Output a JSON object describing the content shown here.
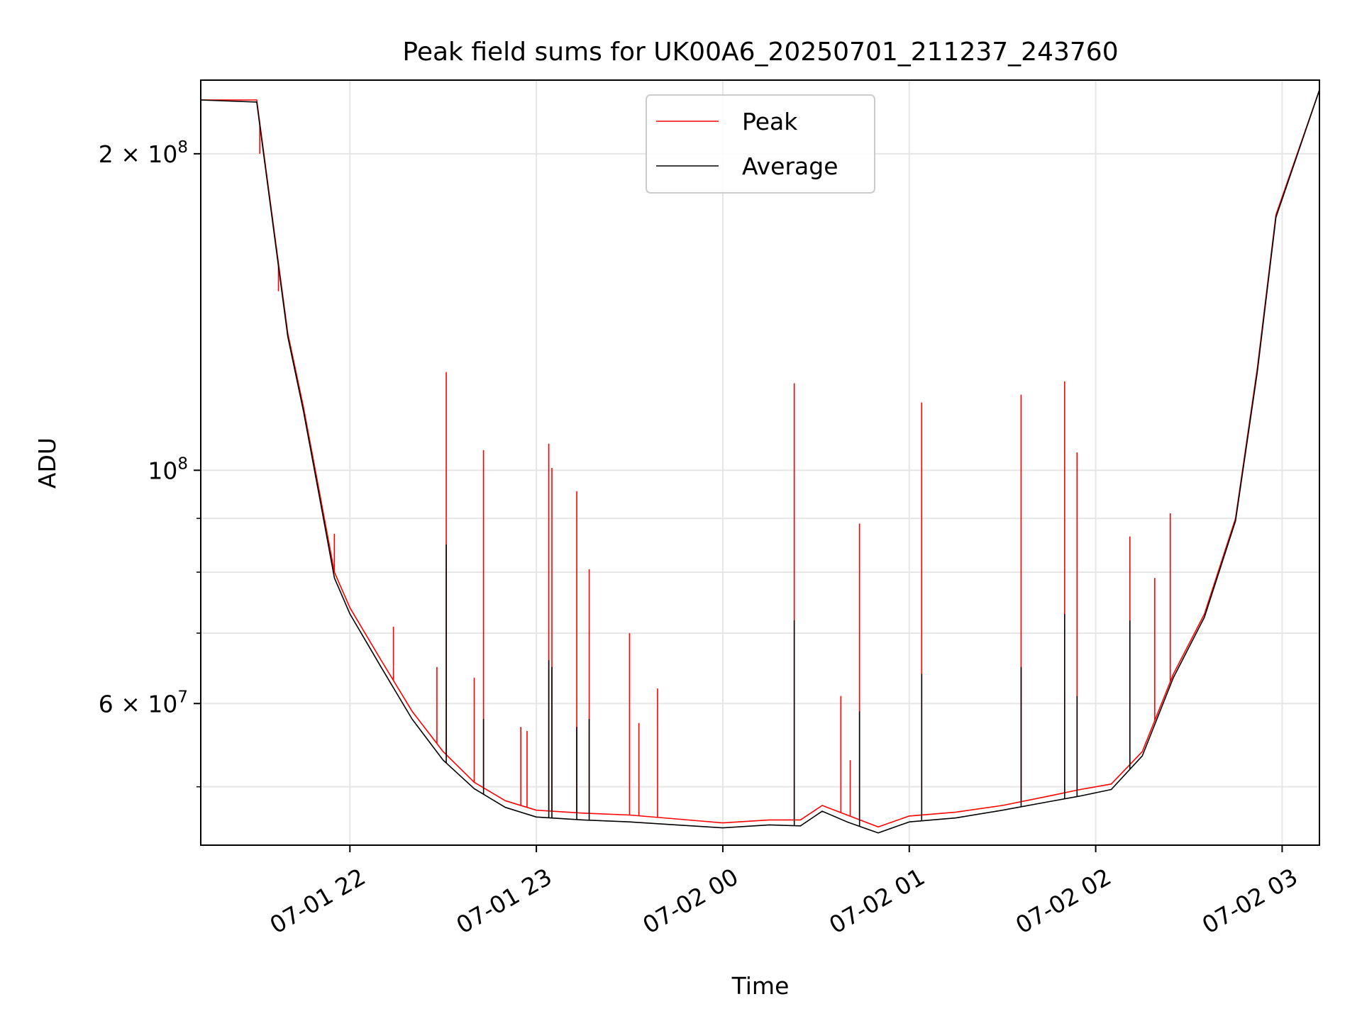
{
  "chart_data": {
    "type": "line",
    "title": "Peak field sums for UK00A6_20250701_211237_243760",
    "xlabel": "Time",
    "ylabel": "ADU",
    "yscale": "log",
    "xlim": [
      "2025-07-01 21:12",
      "2025-07-02 03:12"
    ],
    "ylim": [
      44000000,
      235000000
    ],
    "x_ticks": [
      "07-01 22",
      "07-01 23",
      "07-02 00",
      "07-02 01",
      "07-02 02",
      "07-02 03"
    ],
    "y_tick_labels": [
      {
        "value": 200000000,
        "mantissa": "2",
        "exponent": "8"
      },
      {
        "value": 100000000,
        "mantissa": "",
        "exponent": "8"
      },
      {
        "value": 60000000,
        "mantissa": "6",
        "exponent": "7"
      }
    ],
    "y_minor_ticks": [
      50000000,
      70000000,
      80000000,
      90000000
    ],
    "grid": true,
    "legend_placement": "upper center",
    "series": [
      {
        "name": "Peak",
        "color": "#ff0000",
        "x": [
          "2025-07-01 21:12",
          "2025-07-01 21:30",
          "2025-07-01 21:40",
          "2025-07-01 21:45",
          "2025-07-01 21:50",
          "2025-07-01 21:55",
          "2025-07-01 22:00",
          "2025-07-01 22:10",
          "2025-07-01 22:20",
          "2025-07-01 22:30",
          "2025-07-01 22:40",
          "2025-07-01 22:50",
          "2025-07-01 23:00",
          "2025-07-01 23:15",
          "2025-07-01 23:30",
          "2025-07-01 23:45",
          "2025-07-02 00:00",
          "2025-07-02 00:15",
          "2025-07-02 00:25",
          "2025-07-02 00:32",
          "2025-07-02 00:40",
          "2025-07-02 00:50",
          "2025-07-02 01:00",
          "2025-07-02 01:15",
          "2025-07-02 01:30",
          "2025-07-02 01:45",
          "2025-07-02 01:55",
          "2025-07-02 02:05",
          "2025-07-02 02:15",
          "2025-07-02 02:25",
          "2025-07-02 02:35",
          "2025-07-02 02:45",
          "2025-07-02 02:52",
          "2025-07-02 02:58",
          "2025-07-02 03:12"
        ],
        "values": [
          225000000,
          225000000,
          135000000,
          115000000,
          96000000,
          80000000,
          74000000,
          66000000,
          59000000,
          54000000,
          50500000,
          48500000,
          47500000,
          47200000,
          47000000,
          46600000,
          46200000,
          46500000,
          46500000,
          48000000,
          47000000,
          45800000,
          46900000,
          47300000,
          48000000,
          49000000,
          49700000,
          50300000,
          54000000,
          64000000,
          73000000,
          90000000,
          125000000,
          175000000,
          230000000
        ],
        "spikes": [
          {
            "x": "2025-07-01 21:31",
            "value": 200000000
          },
          {
            "x": "2025-07-01 21:37",
            "value": 148000000
          },
          {
            "x": "2025-07-01 21:55",
            "value": 87000000
          },
          {
            "x": "2025-07-01 22:14",
            "value": 71000000
          },
          {
            "x": "2025-07-01 22:28",
            "value": 65000000
          },
          {
            "x": "2025-07-01 22:31",
            "value": 124000000
          },
          {
            "x": "2025-07-01 22:40",
            "value": 63500000
          },
          {
            "x": "2025-07-01 22:43",
            "value": 104500000
          },
          {
            "x": "2025-07-01 22:55",
            "value": 57000000
          },
          {
            "x": "2025-07-01 22:57",
            "value": 56500000
          },
          {
            "x": "2025-07-01 23:04",
            "value": 106000000
          },
          {
            "x": "2025-07-01 23:05",
            "value": 100500000
          },
          {
            "x": "2025-07-01 23:13",
            "value": 95500000
          },
          {
            "x": "2025-07-01 23:17",
            "value": 80500000
          },
          {
            "x": "2025-07-01 23:30",
            "value": 70000000
          },
          {
            "x": "2025-07-01 23:33",
            "value": 57500000
          },
          {
            "x": "2025-07-01 23:39",
            "value": 62000000
          },
          {
            "x": "2025-07-02 00:23",
            "value": 121000000
          },
          {
            "x": "2025-07-02 00:38",
            "value": 61000000
          },
          {
            "x": "2025-07-02 00:41",
            "value": 53000000
          },
          {
            "x": "2025-07-02 00:44",
            "value": 89000000
          },
          {
            "x": "2025-07-02 01:04",
            "value": 116000000
          },
          {
            "x": "2025-07-02 01:36",
            "value": 118000000
          },
          {
            "x": "2025-07-02 01:50",
            "value": 121500000
          },
          {
            "x": "2025-07-02 01:54",
            "value": 104000000
          },
          {
            "x": "2025-07-02 02:11",
            "value": 86500000
          },
          {
            "x": "2025-07-02 02:19",
            "value": 79000000
          },
          {
            "x": "2025-07-02 02:24",
            "value": 91000000
          }
        ]
      },
      {
        "name": "Average",
        "color": "#000000",
        "x": [
          "2025-07-01 21:12",
          "2025-07-01 21:30",
          "2025-07-01 21:40",
          "2025-07-01 21:45",
          "2025-07-01 21:50",
          "2025-07-01 21:55",
          "2025-07-01 22:00",
          "2025-07-01 22:10",
          "2025-07-01 22:20",
          "2025-07-01 22:30",
          "2025-07-01 22:40",
          "2025-07-01 22:50",
          "2025-07-01 23:00",
          "2025-07-01 23:15",
          "2025-07-01 23:30",
          "2025-07-01 23:45",
          "2025-07-02 00:00",
          "2025-07-02 00:15",
          "2025-07-02 00:25",
          "2025-07-02 00:32",
          "2025-07-02 00:40",
          "2025-07-02 00:50",
          "2025-07-02 01:00",
          "2025-07-02 01:15",
          "2025-07-02 01:30",
          "2025-07-02 01:45",
          "2025-07-02 01:55",
          "2025-07-02 02:05",
          "2025-07-02 02:15",
          "2025-07-02 02:25",
          "2025-07-02 02:35",
          "2025-07-02 02:45",
          "2025-07-02 02:52",
          "2025-07-02 02:58",
          "2025-07-02 03:12"
        ],
        "values": [
          225000000,
          224000000,
          134000000,
          114000000,
          95000000,
          79000000,
          73000000,
          65000000,
          58000000,
          53000000,
          49800000,
          47800000,
          46800000,
          46500000,
          46300000,
          46000000,
          45700000,
          46000000,
          45900000,
          47400000,
          46300000,
          45200000,
          46300000,
          46700000,
          47500000,
          48400000,
          49000000,
          49700000,
          53500000,
          63500000,
          72500000,
          89500000,
          124000000,
          174000000,
          230000000
        ],
        "spikes": [
          {
            "x": "2025-07-01 22:31",
            "value": 85000000
          },
          {
            "x": "2025-07-01 22:43",
            "value": 58000000
          },
          {
            "x": "2025-07-01 23:04",
            "value": 66000000
          },
          {
            "x": "2025-07-01 23:05",
            "value": 65000000
          },
          {
            "x": "2025-07-01 23:13",
            "value": 57000000
          },
          {
            "x": "2025-07-01 23:17",
            "value": 58000000
          },
          {
            "x": "2025-07-02 00:23",
            "value": 72000000
          },
          {
            "x": "2025-07-02 00:44",
            "value": 59000000
          },
          {
            "x": "2025-07-02 01:04",
            "value": 64000000
          },
          {
            "x": "2025-07-02 01:36",
            "value": 65000000
          },
          {
            "x": "2025-07-02 01:50",
            "value": 73000000
          },
          {
            "x": "2025-07-02 01:54",
            "value": 61000000
          },
          {
            "x": "2025-07-02 02:11",
            "value": 72000000
          }
        ]
      }
    ]
  }
}
